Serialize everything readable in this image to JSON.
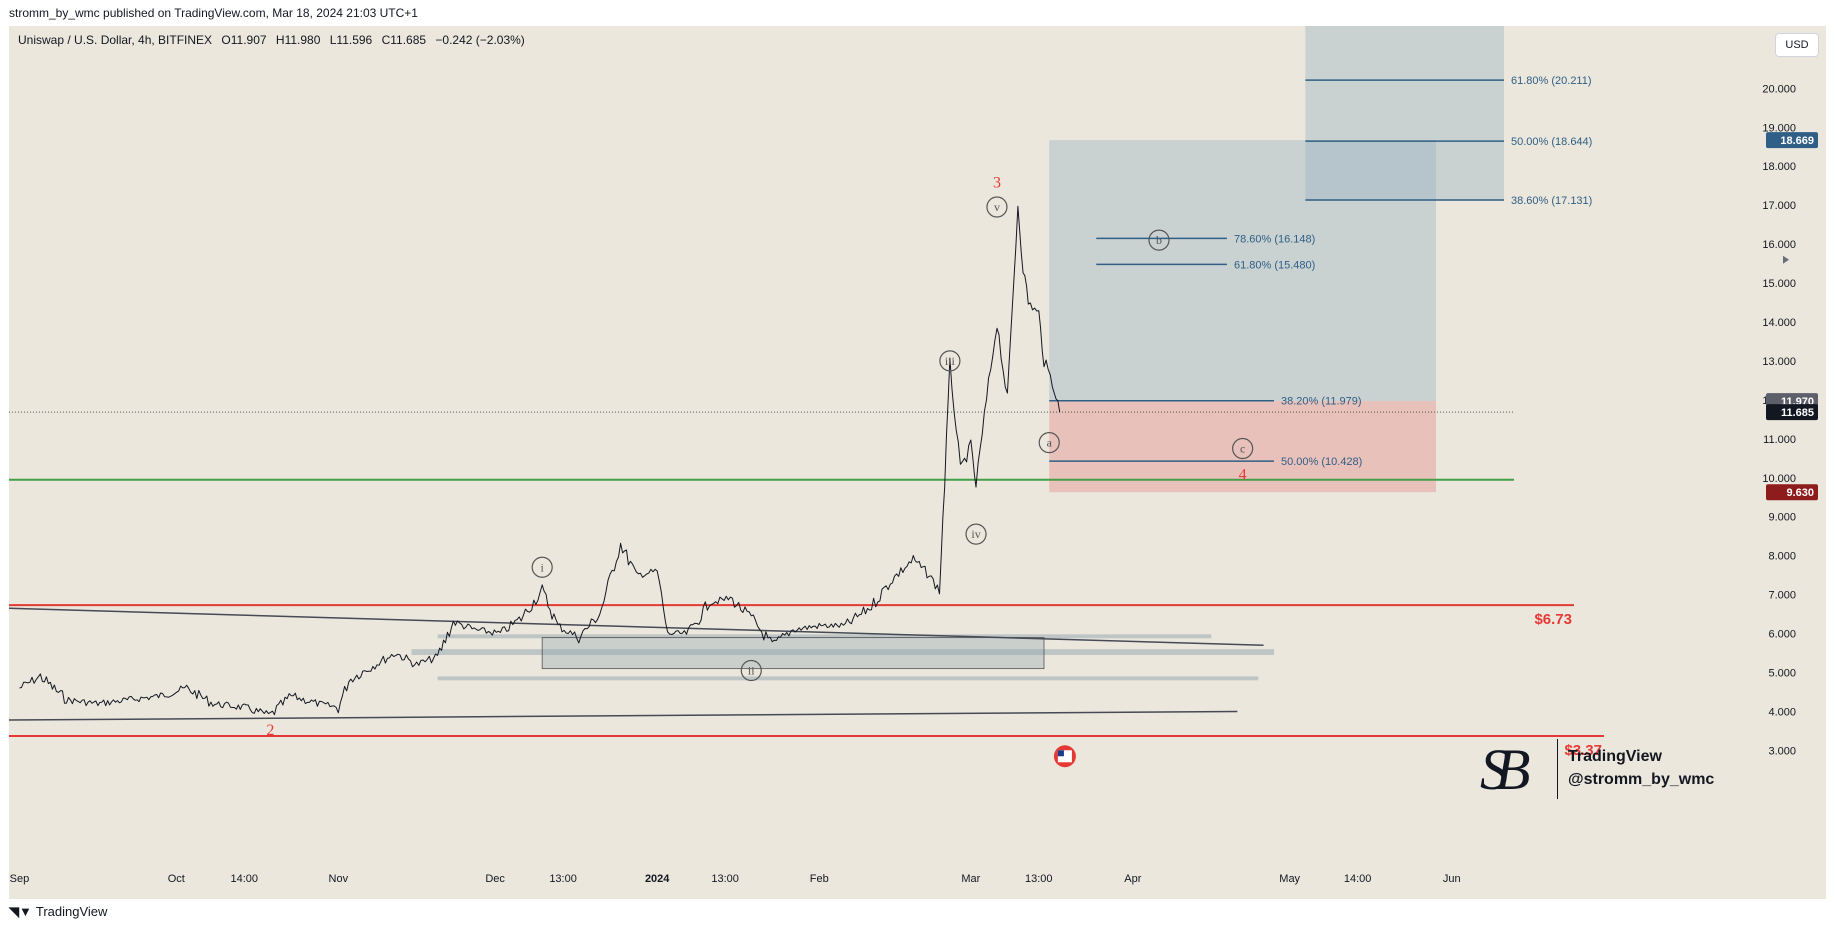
{
  "header": {
    "publisher": "stromm_by_wmc published on TradingView.com, Mar 18, 2024 21:03 UTC+1"
  },
  "symbol": {
    "name": "Uniswap / U.S. Dollar, 4h, BITFINEX",
    "open": "O11.907",
    "high": "H11.980",
    "low": "L11.596",
    "close": "C11.685",
    "change": "−0.242 (−2.03%)"
  },
  "currency_button": "USD",
  "watermark": {
    "line1": "TradingView",
    "line2": "@stromm_by_wmc"
  },
  "footer": {
    "icon": "tradingview-logo-icon",
    "label": "TradingView"
  },
  "colors": {
    "background": "#ebe7dc",
    "candle": "#131722",
    "support_red": "#e53935",
    "green_line": "#43a047",
    "fib_blue": "#2f5f86",
    "target_box": "#9fb6c4",
    "stop_box": "#e8b4b0",
    "wave_red": "#e53935",
    "wave_gray": "#555555"
  },
  "chart_data": {
    "type": "line",
    "series": [
      {
        "values": [
          {
            "x": "2023-09-01",
            "y": 4.6
          },
          {
            "x": "2023-09-05",
            "y": 4.9
          },
          {
            "x": "2023-09-10",
            "y": 4.3
          },
          {
            "x": "2023-09-16",
            "y": 4.2
          },
          {
            "x": "2023-09-22",
            "y": 4.3
          },
          {
            "x": "2023-09-28",
            "y": 4.4
          },
          {
            "x": "2023-10-03",
            "y": 4.6
          },
          {
            "x": "2023-10-08",
            "y": 4.2
          },
          {
            "x": "2023-10-14",
            "y": 4.1
          },
          {
            "x": "2023-10-19",
            "y": 3.9
          },
          {
            "x": "2023-10-23",
            "y": 4.4
          },
          {
            "x": "2023-10-28",
            "y": 4.2
          },
          {
            "x": "2023-11-01",
            "y": 4.1
          },
          {
            "x": "2023-11-03",
            "y": 4.8
          },
          {
            "x": "2023-11-08",
            "y": 5.2
          },
          {
            "x": "2023-11-12",
            "y": 5.5
          },
          {
            "x": "2023-11-16",
            "y": 5.2
          },
          {
            "x": "2023-11-20",
            "y": 5.4
          },
          {
            "x": "2023-11-23",
            "y": 6.3
          },
          {
            "x": "2023-11-27",
            "y": 6.1
          },
          {
            "x": "2023-12-02",
            "y": 6.0
          },
          {
            "x": "2023-12-06",
            "y": 6.4
          },
          {
            "x": "2023-12-10",
            "y": 7.1
          },
          {
            "x": "2023-12-13",
            "y": 6.2
          },
          {
            "x": "2023-12-17",
            "y": 5.9
          },
          {
            "x": "2023-12-21",
            "y": 6.5
          },
          {
            "x": "2023-12-25",
            "y": 8.3
          },
          {
            "x": "2023-12-28",
            "y": 7.5
          },
          {
            "x": "2024-01-01",
            "y": 7.6
          },
          {
            "x": "2024-01-03",
            "y": 6.0
          },
          {
            "x": "2024-01-07",
            "y": 6.0
          },
          {
            "x": "2024-01-11",
            "y": 6.8
          },
          {
            "x": "2024-01-15",
            "y": 6.9
          },
          {
            "x": "2024-01-19",
            "y": 6.4
          },
          {
            "x": "2024-01-23",
            "y": 5.7
          },
          {
            "x": "2024-01-27",
            "y": 6.1
          },
          {
            "x": "2024-02-01",
            "y": 6.2
          },
          {
            "x": "2024-02-06",
            "y": 6.2
          },
          {
            "x": "2024-02-11",
            "y": 6.7
          },
          {
            "x": "2024-02-15",
            "y": 7.4
          },
          {
            "x": "2024-02-19",
            "y": 7.9
          },
          {
            "x": "2024-02-22",
            "y": 7.5
          },
          {
            "x": "2024-02-24",
            "y": 7.1
          },
          {
            "x": "2024-02-25",
            "y": 9.9
          },
          {
            "x": "2024-02-26",
            "y": 12.9
          },
          {
            "x": "2024-02-28",
            "y": 10.2
          },
          {
            "x": "2024-03-01",
            "y": 10.8
          },
          {
            "x": "2024-03-02",
            "y": 9.8
          },
          {
            "x": "2024-03-04",
            "y": 12.0
          },
          {
            "x": "2024-03-06",
            "y": 14.0
          },
          {
            "x": "2024-03-08",
            "y": 12.0
          },
          {
            "x": "2024-03-10",
            "y": 17.0
          },
          {
            "x": "2024-03-11",
            "y": 15.4
          },
          {
            "x": "2024-03-12",
            "y": 14.5
          },
          {
            "x": "2024-03-14",
            "y": 14.2
          },
          {
            "x": "2024-03-15",
            "y": 13.0
          },
          {
            "x": "2024-03-17",
            "y": 12.3
          },
          {
            "x": "2024-03-18",
            "y": 11.685
          }
        ]
      }
    ],
    "x_ticks": [
      "Sep",
      "Oct",
      "14:00",
      "Nov",
      "Dec",
      "13:00",
      "2024",
      "13:00",
      "Feb",
      "Mar",
      "13:00",
      "Apr",
      "May",
      "14:00",
      "Jun"
    ],
    "y_ticks": [
      "3.000",
      "4.000",
      "5.000",
      "6.000",
      "7.000",
      "8.000",
      "9.000",
      "10.000",
      "11.000",
      "12.000",
      "13.000",
      "14.000",
      "15.000",
      "16.000",
      "17.000",
      "18.000",
      "19.000",
      "20.000"
    ],
    "ylim": [
      2.6,
      21.6
    ],
    "xlim": [
      "2023-08-30",
      "2024-06-11"
    ],
    "horizontal_lines": [
      {
        "y": 9.95,
        "color": "green"
      },
      {
        "y": 6.73,
        "color": "red",
        "label": "$6.73"
      },
      {
        "y": 3.37,
        "color": "red",
        "label": "$3.37"
      }
    ],
    "current_price_line": 11.685,
    "price_axis_labels": [
      {
        "y": 18.669,
        "text": "18.669",
        "color": "#2f5f86"
      },
      {
        "y": 11.97,
        "text": "11.970",
        "color": "#5d606b"
      },
      {
        "y": 11.685,
        "text": "11.685",
        "color": "#131722"
      },
      {
        "y": 9.63,
        "text": "9.630",
        "color": "#8e1c1c"
      }
    ],
    "trendlines": [
      {
        "from": {
          "x": "2023-08-30",
          "y": 6.65
        },
        "to": {
          "x": "2024-04-26",
          "y": 5.7
        }
      },
      {
        "from": {
          "x": "2023-08-30",
          "y": 3.78
        },
        "to": {
          "x": "2024-04-21",
          "y": 4.0
        }
      }
    ],
    "zones": [
      {
        "x0": "2023-11-20",
        "x1": "2024-04-16",
        "y0": 5.88,
        "y1": 5.98
      },
      {
        "x0": "2023-11-15",
        "x1": "2024-04-28",
        "y0": 5.45,
        "y1": 5.6
      },
      {
        "x0": "2023-11-20",
        "x1": "2024-04-25",
        "y0": 4.8,
        "y1": 4.9
      },
      {
        "x0": "2023-12-10",
        "x1": "2024-03-15",
        "y0": 5.1,
        "y1": 5.9
      }
    ],
    "projection_boxes": [
      {
        "x0": "2024-03-16",
        "x1": "2024-05-29",
        "y0": 11.97,
        "y1": 18.669,
        "kind": "target"
      },
      {
        "x0": "2024-03-16",
        "x1": "2024-05-29",
        "y0": 9.63,
        "y1": 11.97,
        "kind": "stop"
      },
      {
        "x0": "2024-05-04",
        "x1": "2024-06-11",
        "y0": 17.131,
        "y1": 21.6,
        "kind": "target"
      }
    ],
    "fib_levels": [
      {
        "label": "61.80% (20.211)",
        "y": 20.211,
        "x0": "2024-05-04",
        "x1": "2024-06-11"
      },
      {
        "label": "50.00% (18.644)",
        "y": 18.644,
        "x0": "2024-05-04",
        "x1": "2024-06-11"
      },
      {
        "label": "38.60% (17.131)",
        "y": 17.131,
        "x0": "2024-05-04",
        "x1": "2024-06-11"
      },
      {
        "label": "78.60% (16.148)",
        "y": 16.148,
        "x0": "2024-03-25",
        "x1": "2024-04-19"
      },
      {
        "label": "61.80% (15.480)",
        "y": 15.48,
        "x0": "2024-03-25",
        "x1": "2024-04-19"
      },
      {
        "label": "38.20% (11.979)",
        "y": 11.979,
        "x0": "2024-03-16",
        "x1": "2024-04-28"
      },
      {
        "label": "50.00% (10.428)",
        "y": 10.428,
        "x0": "2024-03-16",
        "x1": "2024-04-28"
      }
    ],
    "wave_labels": [
      {
        "text": "3",
        "x": "2024-03-06",
        "y": 17.45,
        "style": "red"
      },
      {
        "text": "v",
        "x": "2024-03-06",
        "y": 16.85,
        "style": "circle"
      },
      {
        "text": "iii",
        "x": "2024-02-26",
        "y": 12.9,
        "style": "circle"
      },
      {
        "text": "iv",
        "x": "2024-03-02",
        "y": 8.45,
        "style": "circle"
      },
      {
        "text": "a",
        "x": "2024-03-16",
        "y": 10.8,
        "style": "circle"
      },
      {
        "text": "b",
        "x": "2024-04-06",
        "y": 16.0,
        "style": "circle"
      },
      {
        "text": "c",
        "x": "2024-04-22",
        "y": 10.65,
        "style": "circle"
      },
      {
        "text": "4",
        "x": "2024-04-22",
        "y": 9.95,
        "style": "red"
      },
      {
        "text": "i",
        "x": "2023-12-10",
        "y": 7.6,
        "style": "circle"
      },
      {
        "text": "ii",
        "x": "2024-01-19",
        "y": 4.95,
        "style": "circle"
      },
      {
        "text": "2",
        "x": "2023-10-19",
        "y": 3.4,
        "style": "red"
      }
    ],
    "event_marker": {
      "x": "2024-03-19",
      "label": "us-flag-icon"
    }
  }
}
